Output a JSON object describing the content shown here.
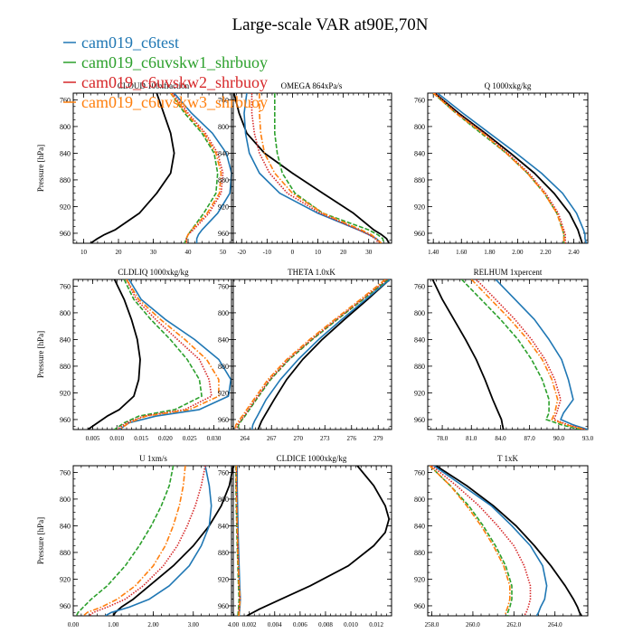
{
  "figure": {
    "title": "Large-scale VAR at90E,70N",
    "legend": [
      {
        "name": "cam019_c6test",
        "color": "#1f77b4"
      },
      {
        "name": "cam019_c6uvskw1_shrbuoy",
        "color": "#2ca02c"
      },
      {
        "name": "cam019_c6uvskw2_shrbuoy",
        "color": "#d62728"
      },
      {
        "name": "cam019_c6uvskw3_shrbuoy",
        "color": "#ff7f0e"
      }
    ],
    "ref_color": "#000000"
  },
  "chart_data": [
    {
      "type": "line",
      "title": "CLOUD 100xfraction",
      "ylabel": "Pressure [hPa]",
      "xlim": [
        7,
        53
      ],
      "ylim": [
        750,
        975
      ],
      "y_reversed": true,
      "xticks": [
        10,
        20,
        30,
        40,
        50
      ],
      "xticklabels": [
        "10",
        "20",
        "30",
        "40",
        "50"
      ],
      "yticks": [
        760,
        800,
        840,
        880,
        920,
        960
      ],
      "y": [
        750,
        780,
        810,
        840,
        870,
        900,
        930,
        955,
        962,
        968,
        975
      ],
      "series": [
        {
          "color": "#000000",
          "x": [
            31,
            33,
            35,
            36,
            35,
            31,
            26,
            19,
            16,
            14,
            12
          ]
        },
        {
          "color": "#1f77b4",
          "x": [
            36,
            41,
            47,
            51,
            52.5,
            52,
            48.5,
            44,
            43,
            42.5,
            42.5
          ]
        },
        {
          "color": "#2ca02c",
          "x": [
            35,
            39,
            44,
            47.5,
            48.5,
            48,
            44.5,
            41,
            40,
            39.5,
            39
          ]
        },
        {
          "color": "#d62728",
          "x": [
            35.5,
            40,
            45,
            48.5,
            50,
            49.5,
            46,
            41.5,
            40,
            39.5,
            39.5
          ]
        },
        {
          "color": "#ff7f0e",
          "x": [
            35,
            39.5,
            44.5,
            48,
            49.5,
            49,
            45.5,
            41,
            40,
            39.5,
            39.5
          ]
        }
      ]
    },
    {
      "type": "line",
      "title": "OMEGA 864xPa/s",
      "ylabel": "",
      "xlim": [
        -24,
        39
      ],
      "ylim": [
        750,
        975
      ],
      "y_reversed": true,
      "xticks": [
        -20,
        -10,
        0,
        10,
        20,
        30
      ],
      "xticklabels": [
        "-20",
        "-10",
        "0",
        "10",
        "20",
        "30"
      ],
      "yticks": [
        760,
        800,
        840,
        880,
        920,
        960
      ],
      "y": [
        750,
        780,
        810,
        840,
        870,
        900,
        930,
        955,
        962,
        968,
        975
      ],
      "series": [
        {
          "color": "#000000",
          "x": [
            -23,
            -21,
            -18,
            -11,
            0,
            12,
            24,
            32,
            35,
            37,
            38
          ]
        },
        {
          "color": "#1f77b4",
          "x": [
            -18,
            -19,
            -18.5,
            -17,
            -13,
            -5,
            10,
            26,
            30,
            33,
            35
          ]
        },
        {
          "color": "#2ca02c",
          "x": [
            -7,
            -7,
            -7,
            -6,
            -4,
            1,
            12,
            30,
            33.5,
            35.5,
            36
          ]
        },
        {
          "color": "#d62728",
          "x": [
            -16,
            -16,
            -15,
            -13,
            -9,
            -2,
            11,
            26,
            30,
            32.5,
            34
          ]
        },
        {
          "color": "#ff7f0e",
          "x": [
            -13,
            -13,
            -12.5,
            -11,
            -7,
            0,
            12,
            27,
            31,
            33,
            35
          ]
        }
      ]
    },
    {
      "type": "line",
      "title": "Q 1000xkg/kg",
      "ylabel": "",
      "xlim": [
        1.36,
        2.5
      ],
      "ylim": [
        750,
        975
      ],
      "y_reversed": true,
      "xticks": [
        1.4,
        1.6,
        1.8,
        2.0,
        2.2,
        2.4
      ],
      "xticklabels": [
        "1.40",
        "1.60",
        "1.80",
        "2.00",
        "2.20",
        "2.40"
      ],
      "yticks": [
        760,
        800,
        840,
        880,
        920,
        960
      ],
      "y": [
        750,
        780,
        810,
        840,
        870,
        900,
        930,
        955,
        962,
        968,
        975
      ],
      "series": [
        {
          "color": "#000000",
          "x": [
            1.41,
            1.58,
            1.77,
            1.95,
            2.12,
            2.26,
            2.37,
            2.43,
            2.44,
            2.45,
            2.46
          ]
        },
        {
          "color": "#1f77b4",
          "x": [
            1.43,
            1.61,
            1.8,
            1.99,
            2.17,
            2.32,
            2.42,
            2.47,
            2.48,
            2.48,
            2.49
          ]
        },
        {
          "color": "#2ca02c",
          "x": [
            1.4,
            1.56,
            1.74,
            1.92,
            2.07,
            2.19,
            2.28,
            2.32,
            2.33,
            2.33,
            2.33
          ]
        },
        {
          "color": "#d62728",
          "x": [
            1.41,
            1.57,
            1.76,
            1.93,
            2.08,
            2.2,
            2.29,
            2.33,
            2.34,
            2.34,
            2.34
          ]
        },
        {
          "color": "#ff7f0e",
          "x": [
            1.4,
            1.56,
            1.75,
            1.92,
            2.07,
            2.19,
            2.28,
            2.32,
            2.33,
            2.33,
            2.33
          ]
        }
      ]
    },
    {
      "type": "line",
      "title": "CLDLIQ 1000xkg/kg",
      "ylabel": "Pressure [hPa]",
      "xlim": [
        0.001,
        0.034
      ],
      "ylim": [
        750,
        975
      ],
      "y_reversed": true,
      "xticks": [
        0.005,
        0.01,
        0.015,
        0.02,
        0.025,
        0.03
      ],
      "xticklabels": [
        "0.005",
        "0.010",
        "0.015",
        "0.020",
        "0.025",
        "0.030"
      ],
      "yticks": [
        760,
        800,
        840,
        880,
        920,
        960
      ],
      "y": [
        750,
        780,
        810,
        840,
        870,
        900,
        925,
        945,
        955,
        965,
        975
      ],
      "series": [
        {
          "color": "#000000",
          "x": [
            0.0095,
            0.0115,
            0.013,
            0.0142,
            0.0148,
            0.0145,
            0.0135,
            0.0105,
            0.008,
            0.006,
            0.004
          ]
        },
        {
          "color": "#1f77b4",
          "x": [
            0.0125,
            0.015,
            0.02,
            0.026,
            0.031,
            0.0335,
            0.033,
            0.027,
            0.018,
            0.0125,
            0.0105
          ]
        },
        {
          "color": "#2ca02c",
          "x": [
            0.0115,
            0.0135,
            0.017,
            0.021,
            0.0245,
            0.027,
            0.0275,
            0.022,
            0.0145,
            0.0115,
            0.0095
          ]
        },
        {
          "color": "#d62728",
          "x": [
            0.012,
            0.014,
            0.018,
            0.0225,
            0.027,
            0.029,
            0.0295,
            0.024,
            0.0155,
            0.012,
            0.01
          ]
        },
        {
          "color": "#ff7f0e",
          "x": [
            0.012,
            0.0145,
            0.019,
            0.024,
            0.0285,
            0.031,
            0.031,
            0.025,
            0.016,
            0.0125,
            0.0105
          ]
        }
      ]
    },
    {
      "type": "line",
      "title": "THETA 1.0xK",
      "ylabel": "",
      "xlim": [
        262.5,
        280.5
      ],
      "ylim": [
        750,
        975
      ],
      "y_reversed": true,
      "xticks": [
        264,
        267,
        270,
        273,
        276,
        279
      ],
      "xticklabels": [
        "264",
        "267",
        "270",
        "273",
        "276",
        "279"
      ],
      "yticks": [
        760,
        800,
        840,
        880,
        920,
        960
      ],
      "y": [
        750,
        780,
        810,
        840,
        870,
        900,
        930,
        955,
        962,
        968,
        975
      ],
      "series": [
        {
          "color": "#000000",
          "x": [
            280.3,
            277.8,
            275.2,
            272.7,
            270.5,
            268.7,
            267.3,
            266.2,
            265.9,
            265.7,
            265.5
          ]
        },
        {
          "color": "#1f77b4",
          "x": [
            280.3,
            277.6,
            274.9,
            272.3,
            270.0,
            268.0,
            266.4,
            265.4,
            265.1,
            264.9,
            264.8
          ]
        },
        {
          "color": "#2ca02c",
          "x": [
            280.1,
            277.3,
            274.4,
            271.6,
            269.0,
            266.9,
            265.3,
            264.0,
            263.6,
            263.3,
            263.2
          ]
        },
        {
          "color": "#d62728",
          "x": [
            280.0,
            277.2,
            274.3,
            271.5,
            268.9,
            266.8,
            265.2,
            263.9,
            263.5,
            263.2,
            263.1
          ]
        },
        {
          "color": "#ff7f0e",
          "x": [
            279.8,
            277.0,
            274.1,
            271.3,
            268.7,
            266.6,
            265.0,
            263.7,
            263.3,
            263.0,
            262.9
          ]
        }
      ]
    },
    {
      "type": "line",
      "title": "RELHUM 1xpercent",
      "ylabel": "",
      "xlim": [
        76.5,
        93
      ],
      "ylim": [
        750,
        975
      ],
      "y_reversed": true,
      "xticks": [
        78,
        81,
        84,
        87,
        90,
        93
      ],
      "xticklabels": [
        "78.0",
        "81.0",
        "84.0",
        "87.0",
        "90.0",
        "93.0"
      ],
      "yticks": [
        760,
        800,
        840,
        880,
        920,
        960
      ],
      "y": [
        750,
        780,
        810,
        840,
        870,
        900,
        930,
        950,
        960,
        968,
        975
      ],
      "series": [
        {
          "color": "#000000",
          "x": [
            77.0,
            78.0,
            79.2,
            80.4,
            81.5,
            82.4,
            83.2,
            83.8,
            84.1,
            84.2,
            84.3
          ]
        },
        {
          "color": "#1f77b4",
          "x": [
            83.5,
            85.5,
            87.5,
            89.0,
            90.3,
            91.0,
            91.5,
            90.5,
            90.2,
            91.5,
            93.0
          ]
        },
        {
          "color": "#2ca02c",
          "x": [
            80.0,
            82.0,
            84.0,
            85.8,
            87.2,
            88.3,
            89.0,
            89.0,
            88.7,
            90.3,
            92.2
          ]
        },
        {
          "color": "#d62728",
          "x": [
            81.5,
            83.5,
            85.5,
            87.2,
            88.6,
            89.6,
            90.2,
            89.8,
            89.5,
            91.0,
            92.7
          ]
        },
        {
          "color": "#ff7f0e",
          "x": [
            81.0,
            83.0,
            85.0,
            86.8,
            88.3,
            89.3,
            89.9,
            89.6,
            89.3,
            90.8,
            92.7
          ]
        }
      ]
    },
    {
      "type": "line",
      "title": "U 1xm/s",
      "ylabel": "Pressure [hPa]",
      "xlim": [
        0,
        4
      ],
      "ylim": [
        750,
        975
      ],
      "y_reversed": true,
      "xticks": [
        0,
        1,
        2,
        3,
        4
      ],
      "xticklabels": [
        "0.00",
        "1.00",
        "2.00",
        "3.00",
        "4.00"
      ],
      "yticks": [
        760,
        800,
        840,
        880,
        920,
        960
      ],
      "y": [
        750,
        780,
        810,
        840,
        870,
        900,
        930,
        950,
        962,
        970,
        975
      ],
      "series": [
        {
          "color": "#000000",
          "x": [
            4.0,
            3.9,
            3.7,
            3.4,
            3.0,
            2.5,
            1.9,
            1.5,
            1.2,
            1.05,
            1.0
          ]
        },
        {
          "color": "#1f77b4",
          "x": [
            3.3,
            3.4,
            3.45,
            3.4,
            3.2,
            2.9,
            2.4,
            1.9,
            1.4,
            0.95,
            0.8
          ]
        },
        {
          "color": "#2ca02c",
          "x": [
            2.5,
            2.4,
            2.2,
            1.95,
            1.65,
            1.3,
            0.85,
            0.45,
            0.25,
            0.12,
            0.08
          ]
        },
        {
          "color": "#d62728",
          "x": [
            3.3,
            3.2,
            3.05,
            2.85,
            2.6,
            2.25,
            1.75,
            1.3,
            0.85,
            0.5,
            0.4
          ]
        },
        {
          "color": "#ff7f0e",
          "x": [
            2.8,
            2.75,
            2.65,
            2.5,
            2.3,
            2.0,
            1.55,
            1.1,
            0.7,
            0.35,
            0.25
          ]
        }
      ]
    },
    {
      "type": "line",
      "title": "CLDICE 1000xkg/kg",
      "ylabel": "",
      "xlim": [
        0.0006,
        0.0132
      ],
      "ylim": [
        750,
        975
      ],
      "y_reversed": true,
      "xticks": [
        0.002,
        0.004,
        0.006,
        0.008,
        0.01,
        0.012
      ],
      "xticklabels": [
        "0.002",
        "0.004",
        "0.006",
        "0.008",
        "0.010",
        "0.012"
      ],
      "yticks": [
        760,
        800,
        840,
        880,
        920,
        960
      ],
      "y": [
        750,
        780,
        810,
        830,
        850,
        870,
        900,
        930,
        950,
        965,
        975
      ],
      "series": [
        {
          "color": "#000000",
          "x": [
            0.0105,
            0.0118,
            0.0127,
            0.013,
            0.0127,
            0.0118,
            0.0098,
            0.0068,
            0.0045,
            0.0028,
            0.0018
          ]
        },
        {
          "color": "#1f77b4",
          "x": [
            0.00105,
            0.00105,
            0.00108,
            0.0011,
            0.00112,
            0.00115,
            0.0012,
            0.00125,
            0.0013,
            0.00125,
            0.0012
          ]
        },
        {
          "color": "#2ca02c",
          "x": [
            0.00095,
            0.00095,
            0.00097,
            0.001,
            0.00102,
            0.00105,
            0.0011,
            0.00115,
            0.0012,
            0.00115,
            0.0011
          ]
        },
        {
          "color": "#d62728",
          "x": [
            0.001,
            0.001,
            0.00102,
            0.00105,
            0.00108,
            0.0011,
            0.00115,
            0.0012,
            0.00125,
            0.0012,
            0.00115
          ]
        },
        {
          "color": "#ff7f0e",
          "x": [
            0.00098,
            0.00098,
            0.001,
            0.00103,
            0.00106,
            0.00108,
            0.00113,
            0.0012,
            0.00128,
            0.00122,
            0.00118
          ]
        }
      ]
    },
    {
      "type": "line",
      "title": "T 1xK",
      "ylabel": "",
      "xlim": [
        257.8,
        265.6
      ],
      "ylim": [
        750,
        975
      ],
      "y_reversed": true,
      "xticks": [
        258,
        260,
        262,
        264
      ],
      "xticklabels": [
        "258.0",
        "260.0",
        "262.0",
        "264.0"
      ],
      "yticks": [
        760,
        800,
        840,
        880,
        920,
        960
      ],
      "y": [
        750,
        780,
        810,
        840,
        870,
        900,
        930,
        950,
        962,
        970,
        975
      ],
      "series": [
        {
          "color": "#000000",
          "x": [
            258.2,
            259.7,
            261.0,
            262.1,
            263.0,
            263.8,
            264.5,
            264.9,
            265.1,
            265.2,
            265.3
          ]
        },
        {
          "color": "#1f77b4",
          "x": [
            258.1,
            259.5,
            260.9,
            261.9,
            262.8,
            263.4,
            263.6,
            263.5,
            263.3,
            263.2,
            263.1
          ]
        },
        {
          "color": "#2ca02c",
          "x": [
            257.9,
            258.9,
            259.8,
            260.5,
            261.1,
            261.6,
            261.9,
            261.9,
            261.8,
            261.7,
            261.7
          ]
        },
        {
          "color": "#d62728",
          "x": [
            258.0,
            259.2,
            260.3,
            261.2,
            262.0,
            262.5,
            262.8,
            262.8,
            262.7,
            262.6,
            262.5
          ]
        },
        {
          "color": "#ff7f0e",
          "x": [
            257.9,
            258.9,
            259.7,
            260.4,
            261.0,
            261.5,
            261.8,
            261.8,
            261.7,
            261.6,
            261.6
          ]
        }
      ]
    }
  ]
}
